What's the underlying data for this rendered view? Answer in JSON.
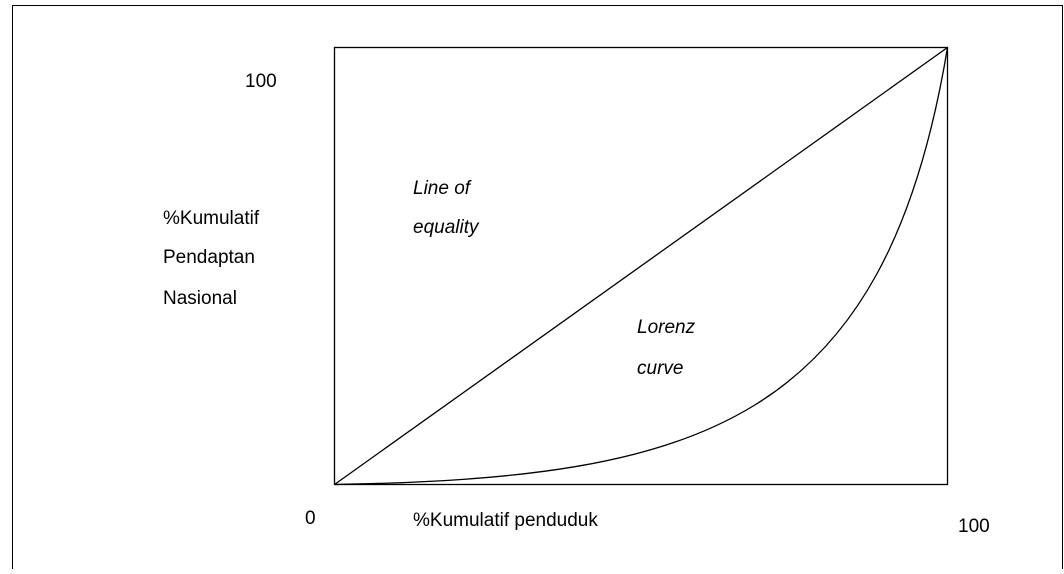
{
  "y_axis": {
    "max_label": "100",
    "title": [
      "%Kumulatif",
      "Pendaptan",
      "Nasional"
    ]
  },
  "x_axis": {
    "origin_label": "0",
    "title": "%Kumulatif penduduk",
    "max_label": "100"
  },
  "annotations": {
    "equality": [
      "Line of",
      "equality"
    ],
    "lorenz": [
      "Lorenz",
      "curve"
    ]
  }
}
